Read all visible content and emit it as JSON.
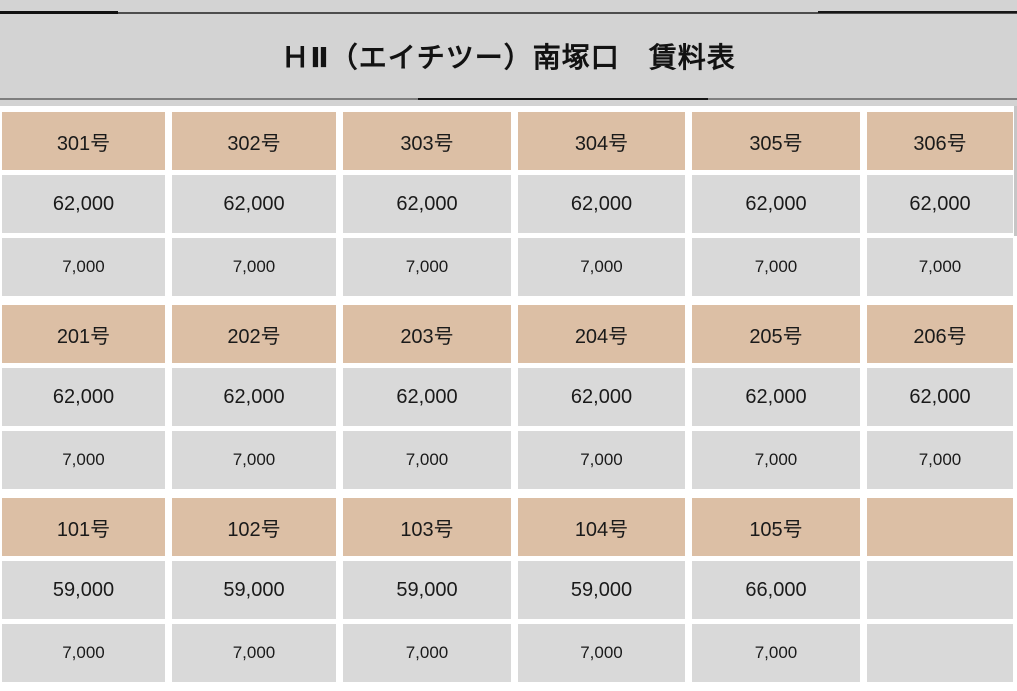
{
  "title": "ＨⅡ（エイチツー）南塚口　賃料表",
  "colors": {
    "room_bg": "#dcbfa5",
    "value_bg": "#d9d9d9",
    "band_bg": "#d3d3d3"
  },
  "table": {
    "sections": [
      {
        "rooms": [
          "301号",
          "302号",
          "303号",
          "304号",
          "305号",
          "306号"
        ],
        "rent": [
          "62,000",
          "62,000",
          "62,000",
          "62,000",
          "62,000",
          "62,000"
        ],
        "fee": [
          "7,000",
          "7,000",
          "7,000",
          "7,000",
          "7,000",
          "7,000"
        ]
      },
      {
        "rooms": [
          "201号",
          "202号",
          "203号",
          "204号",
          "205号",
          "206号"
        ],
        "rent": [
          "62,000",
          "62,000",
          "62,000",
          "62,000",
          "62,000",
          "62,000"
        ],
        "fee": [
          "7,000",
          "7,000",
          "7,000",
          "7,000",
          "7,000",
          "7,000"
        ]
      },
      {
        "rooms": [
          "101号",
          "102号",
          "103号",
          "104号",
          "105号",
          ""
        ],
        "rent": [
          "59,000",
          "59,000",
          "59,000",
          "59,000",
          "66,000",
          ""
        ],
        "fee": [
          "7,000",
          "7,000",
          "7,000",
          "7,000",
          "7,000",
          ""
        ]
      }
    ]
  }
}
